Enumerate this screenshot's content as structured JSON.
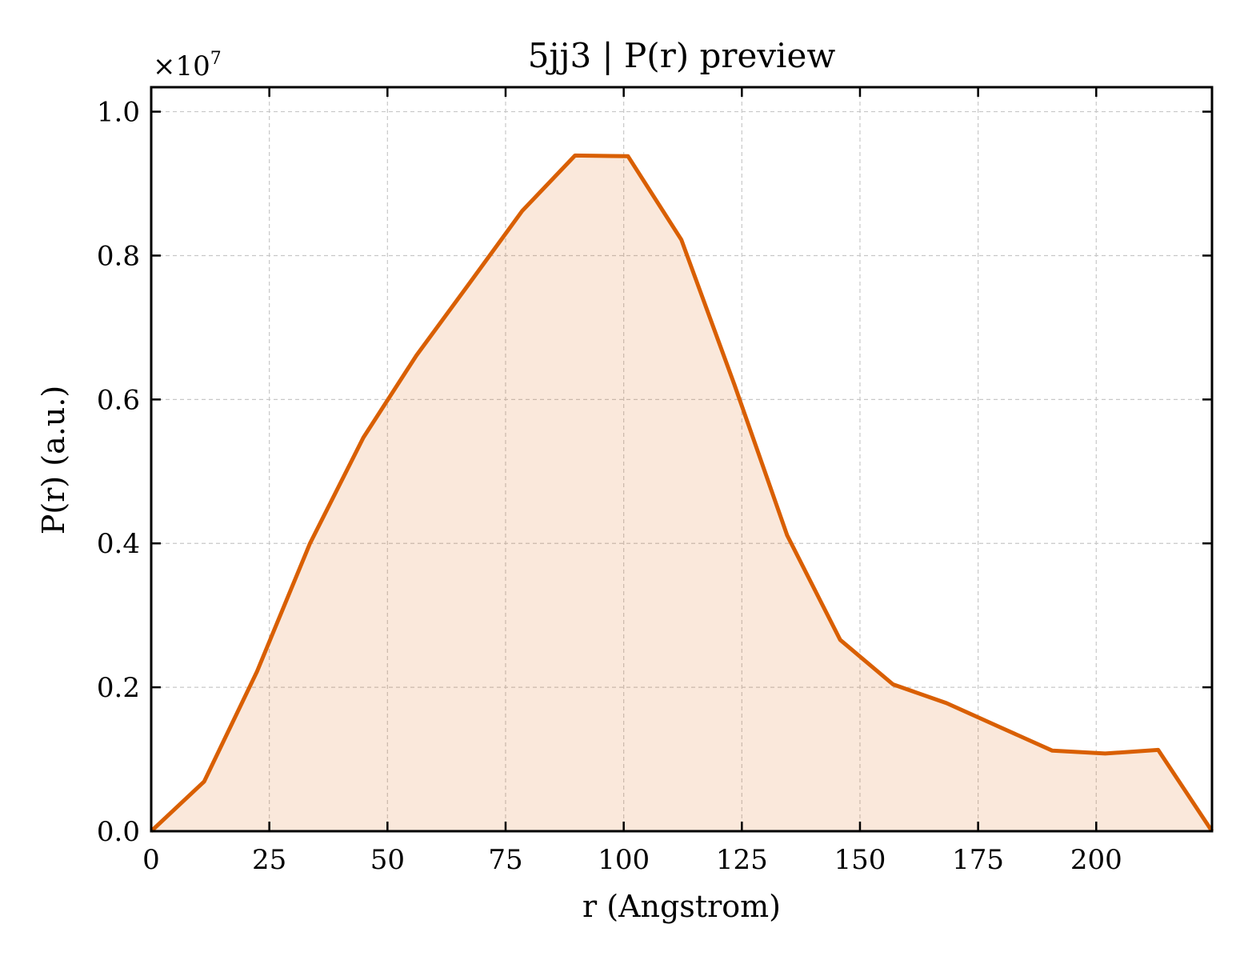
{
  "chart_data": {
    "type": "area",
    "title": "5jj3 | P(r) preview",
    "xlabel": "r (Angstrom)",
    "ylabel": "P(r) (a.u.)",
    "y_multiplier_label": "×10",
    "y_multiplier_exponent": "7",
    "xlim": [
      0,
      224.5
    ],
    "ylim": [
      0,
      1.034
    ],
    "grid": true,
    "x_ticks": [
      0,
      25,
      50,
      75,
      100,
      125,
      150,
      175,
      200
    ],
    "x_tick_labels": [
      "0",
      "25",
      "50",
      "75",
      "100",
      "125",
      "150",
      "175",
      "200"
    ],
    "y_ticks": [
      0,
      0.2,
      0.4,
      0.6,
      0.8,
      1.0
    ],
    "y_tick_labels": [
      "0.0",
      "0.2",
      "0.4",
      "0.6",
      "0.8",
      "1.0"
    ],
    "series": [
      {
        "color": "#d95f02",
        "fill_color": "#d95f02",
        "x": [
          0,
          11.2,
          22.4,
          33.6,
          44.9,
          56.1,
          67.3,
          78.5,
          89.7,
          100.9,
          112.2,
          123.4,
          134.6,
          145.8,
          157.0,
          168.3,
          179.5,
          190.7,
          201.9,
          213.1,
          224.5
        ],
        "y": [
          0.0,
          0.069,
          0.222,
          0.4,
          0.547,
          0.661,
          0.761,
          0.862,
          0.939,
          0.938,
          0.822,
          0.621,
          0.411,
          0.266,
          0.204,
          0.178,
          0.145,
          0.112,
          0.108,
          0.113,
          0.0
        ]
      }
    ]
  }
}
